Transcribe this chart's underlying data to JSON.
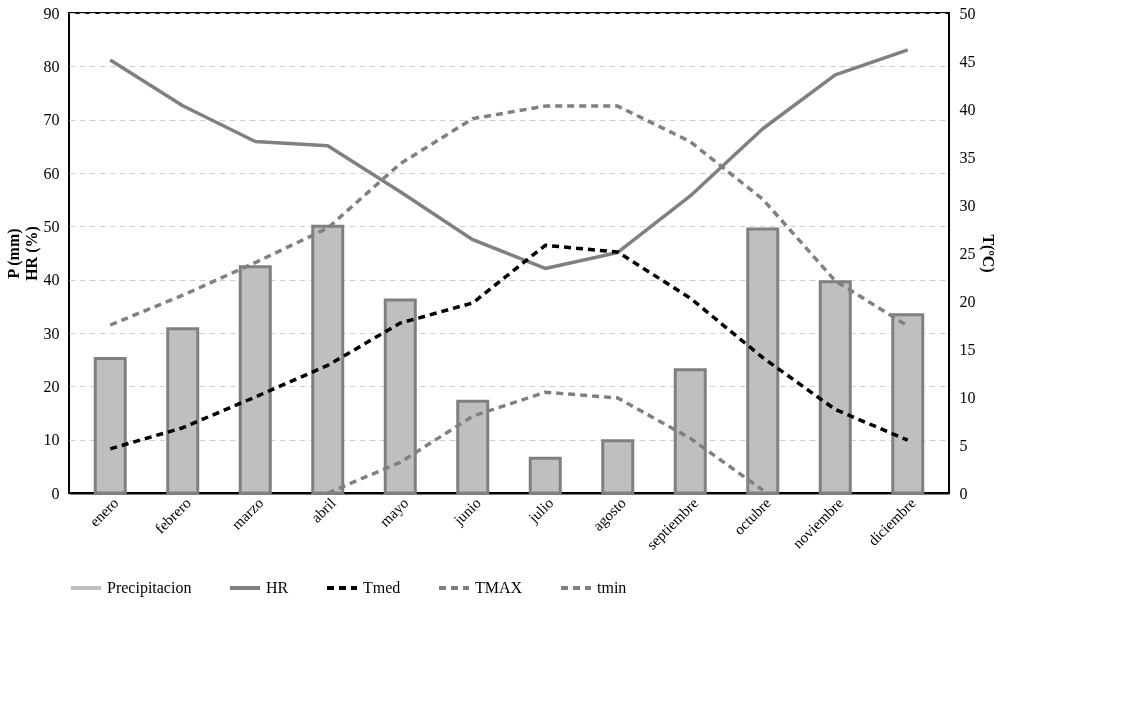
{
  "chart_data": {
    "type": "bar",
    "categories": [
      "enero",
      "febrero",
      "marzo",
      "abril",
      "mayo",
      "junio",
      "julio",
      "agosto",
      "septiembre",
      "octubre",
      "noviembre",
      "diciembre"
    ],
    "ylabel": "P (mm)\nHR (%)",
    "y2label": "T(ºC)",
    "ylim": [
      0,
      90
    ],
    "yticks": [
      0,
      10,
      20,
      30,
      40,
      50,
      60,
      70,
      80,
      90
    ],
    "y2lim": [
      0,
      50
    ],
    "y2ticks": [
      0,
      5,
      10,
      15,
      20,
      25,
      30,
      35,
      40,
      45,
      50
    ],
    "grid": "y",
    "legend": "bottom",
    "series": [
      {
        "name": "Precipitacion",
        "color": "#bfbfbf",
        "values": [
          25.2,
          30.8,
          42.4,
          50.0,
          36.2,
          17.2,
          6.5,
          9.8,
          23.1,
          49.5,
          39.6,
          33.4
        ]
      },
      {
        "name": "HR",
        "type": "line",
        "color": "#808080",
        "line_style": "solid",
        "values": [
          81.2,
          72.6,
          65.9,
          65.1,
          56.5,
          47.5,
          42.1,
          45.1,
          55.7,
          68.3,
          78.4,
          83.1
        ]
      },
      {
        "name": "Tmed",
        "type": "line",
        "axis": "y2",
        "color": "#000000",
        "line_style": "dashed",
        "values": [
          4.6,
          6.8,
          10.0,
          13.3,
          17.7,
          19.8,
          25.8,
          25.1,
          20.3,
          14.1,
          8.7,
          5.5
        ]
      },
      {
        "name": "TMAX",
        "type": "line",
        "axis": "y2",
        "color": "#808080",
        "line_style": "dashed",
        "values": [
          17.5,
          20.6,
          24.0,
          27.6,
          34.3,
          39.0,
          40.3,
          40.3,
          36.6,
          30.6,
          22.1,
          17.4
        ]
      },
      {
        "name": "tmin",
        "type": "line",
        "axis": "y2",
        "color": "#808080",
        "line_style": "dashed",
        "values": [
          null,
          null,
          null,
          0.0,
          3.2,
          8.0,
          10.5,
          9.9,
          5.7,
          0.3,
          null,
          null
        ]
      }
    ]
  }
}
